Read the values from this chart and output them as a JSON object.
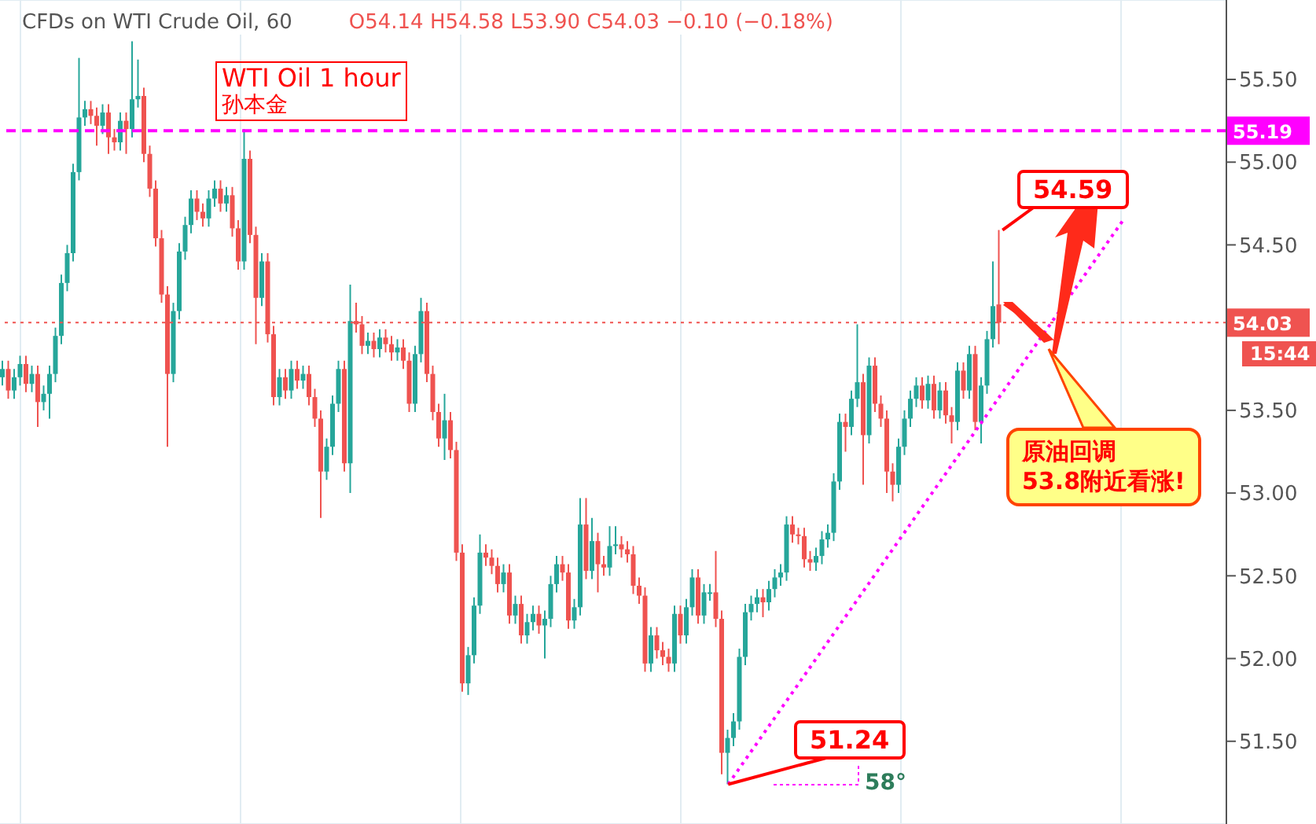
{
  "chart_data": {
    "type": "candlestick",
    "title": "CFDs on WTI Crude Oil, 60",
    "subtitle": "O54.14 H54.58 L53.90 C54.03 −0.10 (−0.18%)",
    "categories": [
      null,
      null,
      null,
      null,
      null,
      null,
      null,
      null,
      null,
      null,
      null,
      null,
      null,
      null,
      null,
      null,
      null,
      null,
      null,
      null,
      null,
      null,
      null,
      null,
      null,
      null,
      null,
      null,
      null,
      null,
      null,
      null,
      null,
      null,
      null,
      null,
      null,
      null,
      null,
      null,
      null,
      null,
      null,
      null,
      null,
      null,
      null,
      null,
      null,
      null,
      null,
      null,
      null,
      null,
      null,
      null,
      null,
      null,
      null,
      null,
      null,
      null,
      null,
      null,
      null,
      null,
      null,
      null,
      null,
      null,
      null,
      null,
      null,
      null,
      null,
      null,
      null,
      null,
      null,
      null,
      null,
      null,
      null,
      null,
      null,
      null,
      null,
      null,
      null,
      null,
      null,
      null,
      null,
      null,
      null,
      null,
      null,
      null,
      null,
      null,
      null,
      null,
      null,
      null,
      null,
      null,
      null,
      null,
      null,
      null,
      null,
      null,
      null,
      null,
      null,
      null,
      null,
      null,
      null,
      null,
      null,
      null,
      null,
      null,
      null,
      null,
      null,
      null,
      null,
      null,
      null,
      null,
      null,
      null,
      null,
      null,
      null,
      null,
      null,
      null,
      null,
      null,
      null,
      null,
      null,
      null,
      null,
      null,
      null,
      null,
      null,
      null,
      null,
      null,
      null,
      null,
      null,
      null,
      null,
      null,
      null,
      null,
      null,
      null,
      null,
      null,
      null,
      null,
      null,
      null,
      null,
      null,
      null,
      null,
      null,
      null,
      null,
      null,
      null,
      null,
      null,
      null,
      null,
      null,
      null,
      null,
      null,
      null,
      null,
      null,
      null,
      null,
      null,
      null,
      null,
      null,
      null,
      null,
      null,
      null,
      null,
      null,
      null,
      null,
      null,
      null,
      null,
      null
    ],
    "ohlc": [
      [
        53.7,
        53.8,
        53.65,
        53.75
      ],
      [
        53.75,
        53.8,
        53.57,
        53.62
      ],
      [
        53.62,
        53.75,
        53.57,
        53.7
      ],
      [
        53.7,
        53.83,
        53.65,
        53.78
      ],
      [
        53.78,
        53.83,
        53.61,
        53.66
      ],
      [
        53.66,
        53.77,
        53.61,
        53.72
      ],
      [
        53.72,
        53.77,
        53.4,
        53.55
      ],
      [
        53.55,
        53.65,
        53.5,
        53.6
      ],
      [
        53.6,
        53.77,
        53.45,
        53.72
      ],
      [
        53.72,
        54.0,
        53.67,
        53.95
      ],
      [
        53.95,
        54.32,
        53.9,
        54.27
      ],
      [
        54.27,
        54.5,
        54.22,
        54.45
      ],
      [
        54.45,
        54.99,
        54.4,
        54.94
      ],
      [
        54.94,
        55.63,
        54.89,
        55.27
      ],
      [
        55.27,
        55.37,
        55.22,
        55.32
      ],
      [
        55.32,
        55.37,
        55.23,
        55.28
      ],
      [
        55.28,
        55.33,
        55.1,
        55.22
      ],
      [
        55.22,
        55.35,
        55.17,
        55.3
      ],
      [
        55.3,
        55.35,
        55.05,
        55.15
      ],
      [
        55.15,
        55.2,
        55.07,
        55.12
      ],
      [
        55.12,
        55.3,
        55.07,
        55.25
      ],
      [
        55.25,
        55.3,
        55.05,
        55.2
      ],
      [
        55.2,
        55.73,
        55.15,
        55.38
      ],
      [
        55.38,
        55.62,
        55.33,
        55.4
      ],
      [
        55.4,
        55.45,
        55.0,
        55.05
      ],
      [
        55.05,
        55.1,
        54.79,
        54.84
      ],
      [
        54.84,
        54.89,
        54.49,
        54.54
      ],
      [
        54.54,
        54.59,
        54.15,
        54.2
      ],
      [
        54.2,
        54.25,
        53.28,
        53.72
      ],
      [
        53.72,
        54.15,
        53.67,
        54.1
      ],
      [
        54.1,
        54.51,
        54.05,
        54.46
      ],
      [
        54.46,
        54.67,
        54.41,
        54.62
      ],
      [
        54.62,
        54.83,
        54.57,
        54.78
      ],
      [
        54.78,
        54.83,
        54.65,
        54.7
      ],
      [
        54.7,
        54.75,
        54.61,
        54.66
      ],
      [
        54.66,
        54.83,
        54.61,
        54.78
      ],
      [
        54.78,
        54.89,
        54.73,
        54.84
      ],
      [
        54.84,
        54.89,
        54.7,
        54.75
      ],
      [
        54.75,
        54.85,
        54.7,
        54.8
      ],
      [
        54.8,
        54.85,
        54.55,
        54.6
      ],
      [
        54.6,
        54.65,
        54.35,
        54.4
      ],
      [
        54.4,
        55.2,
        54.35,
        55.02
      ],
      [
        55.02,
        55.07,
        54.51,
        54.56
      ],
      [
        54.56,
        54.61,
        53.9,
        54.18
      ],
      [
        54.18,
        54.45,
        54.13,
        54.4
      ],
      [
        54.4,
        54.45,
        53.91,
        53.96
      ],
      [
        53.96,
        54.01,
        53.53,
        53.58
      ],
      [
        53.58,
        53.75,
        53.53,
        53.7
      ],
      [
        53.7,
        53.75,
        53.57,
        53.62
      ],
      [
        53.62,
        53.8,
        53.57,
        53.75
      ],
      [
        53.75,
        53.8,
        53.63,
        53.68
      ],
      [
        53.68,
        53.77,
        53.63,
        53.72
      ],
      [
        53.72,
        53.77,
        53.53,
        53.58
      ],
      [
        53.58,
        53.63,
        53.4,
        53.45
      ],
      [
        53.45,
        53.5,
        52.85,
        53.13
      ],
      [
        53.13,
        53.33,
        53.08,
        53.28
      ],
      [
        53.28,
        53.59,
        53.23,
        53.54
      ],
      [
        53.54,
        53.8,
        53.49,
        53.75
      ],
      [
        53.75,
        53.8,
        53.13,
        53.18
      ],
      [
        53.18,
        54.26,
        53.0,
        54.04
      ],
      [
        54.04,
        54.15,
        53.97,
        54.02
      ],
      [
        54.02,
        54.07,
        53.84,
        53.89
      ],
      [
        53.89,
        53.97,
        53.84,
        53.92
      ],
      [
        53.92,
        53.97,
        53.82,
        53.87
      ],
      [
        53.87,
        53.99,
        53.82,
        53.94
      ],
      [
        53.94,
        53.99,
        53.85,
        53.9
      ],
      [
        53.9,
        53.95,
        53.8,
        53.85
      ],
      [
        53.85,
        53.93,
        53.8,
        53.88
      ],
      [
        53.88,
        53.93,
        53.75,
        53.8
      ],
      [
        53.8,
        53.85,
        53.49,
        53.54
      ],
      [
        53.54,
        53.89,
        53.49,
        53.84
      ],
      [
        53.84,
        54.18,
        53.79,
        54.1
      ],
      [
        54.1,
        54.15,
        53.67,
        53.72
      ],
      [
        53.72,
        53.77,
        53.44,
        53.49
      ],
      [
        53.49,
        53.54,
        53.28,
        53.33
      ],
      [
        53.33,
        53.6,
        53.2,
        53.44
      ],
      [
        53.44,
        53.49,
        53.21,
        53.26
      ],
      [
        53.26,
        53.31,
        52.59,
        52.64
      ],
      [
        52.64,
        52.69,
        51.8,
        51.85
      ],
      [
        51.85,
        52.07,
        51.78,
        52.02
      ],
      [
        52.02,
        52.37,
        51.97,
        52.32
      ],
      [
        52.32,
        52.75,
        52.27,
        52.64
      ],
      [
        52.64,
        52.69,
        52.56,
        52.61
      ],
      [
        52.61,
        52.66,
        52.51,
        52.56
      ],
      [
        52.56,
        52.61,
        52.4,
        52.45
      ],
      [
        52.45,
        52.57,
        52.4,
        52.52
      ],
      [
        52.52,
        52.57,
        52.21,
        52.26
      ],
      [
        52.26,
        52.38,
        52.21,
        52.33
      ],
      [
        52.33,
        52.38,
        52.09,
        52.14
      ],
      [
        52.14,
        52.27,
        52.09,
        52.22
      ],
      [
        52.22,
        52.32,
        52.17,
        52.27
      ],
      [
        52.27,
        52.32,
        52.15,
        52.2
      ],
      [
        52.2,
        52.29,
        52.0,
        52.24
      ],
      [
        52.24,
        52.5,
        52.19,
        52.45
      ],
      [
        52.45,
        52.62,
        52.4,
        52.57
      ],
      [
        52.57,
        52.62,
        52.47,
        52.52
      ],
      [
        52.52,
        52.57,
        52.18,
        52.23
      ],
      [
        52.23,
        52.36,
        52.18,
        52.31
      ],
      [
        52.31,
        52.97,
        52.26,
        52.81
      ],
      [
        52.81,
        52.97,
        52.48,
        52.53
      ],
      [
        52.53,
        52.85,
        52.48,
        52.71
      ],
      [
        52.71,
        52.76,
        52.4,
        52.57
      ],
      [
        52.57,
        52.62,
        52.5,
        52.55
      ],
      [
        52.55,
        52.8,
        52.5,
        52.68
      ],
      [
        52.68,
        52.8,
        52.63,
        52.69
      ],
      [
        52.69,
        52.74,
        52.61,
        52.66
      ],
      [
        52.66,
        52.71,
        52.58,
        52.63
      ],
      [
        52.63,
        52.68,
        52.39,
        52.44
      ],
      [
        52.44,
        52.49,
        52.33,
        52.38
      ],
      [
        52.38,
        52.43,
        51.92,
        51.97
      ],
      [
        51.97,
        52.19,
        51.92,
        52.14
      ],
      [
        52.14,
        52.19,
        52.0,
        52.05
      ],
      [
        52.05,
        52.1,
        51.96,
        52.01
      ],
      [
        52.01,
        52.06,
        51.92,
        51.97
      ],
      [
        51.97,
        52.32,
        51.92,
        52.27
      ],
      [
        52.27,
        52.32,
        52.09,
        52.14
      ],
      [
        52.14,
        52.36,
        52.09,
        52.31
      ],
      [
        52.31,
        52.54,
        52.26,
        52.49
      ],
      [
        52.49,
        52.54,
        52.21,
        52.26
      ],
      [
        52.26,
        52.45,
        52.21,
        52.4
      ],
      [
        52.4,
        52.45,
        52.35,
        52.4
      ],
      [
        52.4,
        52.65,
        52.19,
        52.24
      ],
      [
        52.24,
        52.29,
        51.3,
        51.43
      ],
      [
        51.43,
        51.57,
        51.24,
        51.52
      ],
      [
        51.52,
        51.67,
        51.47,
        51.62
      ],
      [
        51.62,
        52.06,
        51.57,
        52.01
      ],
      [
        52.01,
        52.33,
        51.96,
        52.28
      ],
      [
        52.28,
        52.38,
        52.23,
        52.33
      ],
      [
        52.33,
        52.42,
        52.28,
        52.37
      ],
      [
        52.37,
        52.42,
        52.25,
        52.34
      ],
      [
        52.34,
        52.47,
        52.29,
        52.42
      ],
      [
        52.42,
        52.54,
        52.37,
        52.49
      ],
      [
        52.49,
        52.57,
        52.44,
        52.52
      ],
      [
        52.52,
        52.86,
        52.47,
        52.81
      ],
      [
        52.81,
        52.86,
        52.7,
        52.75
      ],
      [
        52.75,
        52.79,
        52.69,
        52.74
      ],
      [
        52.74,
        52.79,
        52.55,
        52.6
      ],
      [
        52.6,
        52.65,
        52.53,
        52.58
      ],
      [
        52.58,
        52.67,
        52.53,
        52.62
      ],
      [
        52.62,
        52.77,
        52.57,
        52.72
      ],
      [
        52.72,
        52.81,
        52.67,
        52.76
      ],
      [
        52.76,
        53.12,
        52.71,
        53.07
      ],
      [
        53.07,
        53.48,
        53.02,
        53.43
      ],
      [
        53.43,
        53.48,
        53.25,
        53.4
      ],
      [
        53.4,
        53.62,
        53.35,
        53.57
      ],
      [
        53.57,
        54.02,
        53.52,
        53.67
      ],
      [
        53.67,
        53.72,
        53.05,
        53.35
      ],
      [
        53.35,
        53.82,
        53.3,
        53.77
      ],
      [
        53.77,
        53.82,
        53.49,
        53.54
      ],
      [
        53.54,
        53.59,
        53.4,
        53.45
      ],
      [
        53.45,
        53.5,
        53.0,
        53.13
      ],
      [
        53.13,
        53.18,
        52.95,
        53.05
      ],
      [
        53.05,
        53.33,
        53.0,
        53.28
      ],
      [
        53.28,
        53.5,
        53.23,
        53.45
      ],
      [
        53.45,
        53.62,
        53.4,
        53.57
      ],
      [
        53.57,
        53.7,
        53.52,
        53.65
      ],
      [
        53.65,
        53.7,
        53.51,
        53.56
      ],
      [
        53.56,
        53.71,
        53.51,
        53.66
      ],
      [
        53.66,
        53.71,
        53.45,
        53.5
      ],
      [
        53.5,
        53.67,
        53.45,
        53.62
      ],
      [
        53.62,
        53.67,
        53.42,
        53.47
      ],
      [
        53.47,
        53.52,
        53.3,
        53.43
      ],
      [
        53.43,
        53.79,
        53.38,
        53.74
      ],
      [
        53.74,
        53.79,
        53.57,
        53.62
      ],
      [
        53.62,
        53.89,
        53.57,
        53.84
      ],
      [
        53.84,
        53.89,
        53.38,
        53.43
      ],
      [
        53.43,
        53.7,
        53.3,
        53.65
      ],
      [
        53.65,
        53.98,
        53.6,
        53.93
      ],
      [
        53.93,
        54.4,
        53.88,
        54.13
      ],
      [
        54.14,
        54.59,
        53.9,
        54.03
      ],
      null,
      null,
      null,
      null,
      null,
      null,
      null,
      null,
      null,
      null,
      null,
      null,
      null,
      null,
      null,
      null,
      null,
      null,
      null,
      null,
      null,
      null,
      null,
      null,
      null,
      null,
      null,
      null,
      null,
      null,
      null,
      null,
      null,
      null,
      null,
      null,
      null,
      null
    ],
    "colors": [
      "#26a69a",
      "#ef5350",
      "#26a69a",
      "#26a69a",
      "#ef5350",
      "#26a69a",
      "#ef5350",
      "#26a69a",
      "#26a69a",
      "#26a69a",
      "#26a69a",
      "#26a69a",
      "#26a69a",
      "#26a69a",
      "#26a69a",
      "#ef5350",
      "#ef5350",
      "#26a69a",
      "#ef5350",
      "#ef5350",
      "#26a69a",
      "#ef5350",
      "#26a69a",
      "#26a69a",
      "#ef5350",
      "#ef5350",
      "#ef5350",
      "#ef5350",
      "#ef5350",
      "#26a69a",
      "#26a69a",
      "#26a69a",
      "#26a69a",
      "#ef5350",
      "#ef5350",
      "#26a69a",
      "#26a69a",
      "#ef5350",
      "#26a69a",
      "#ef5350",
      "#ef5350",
      "#26a69a",
      "#ef5350",
      "#ef5350",
      "#26a69a",
      "#ef5350",
      "#ef5350",
      "#26a69a",
      "#ef5350",
      "#26a69a",
      "#ef5350",
      "#26a69a",
      "#ef5350",
      "#ef5350",
      "#ef5350",
      "#26a69a",
      "#26a69a",
      "#26a69a",
      "#ef5350",
      "#26a69a",
      "#ef5350",
      "#ef5350",
      "#26a69a",
      "#ef5350",
      "#26a69a",
      "#ef5350",
      "#ef5350",
      "#26a69a",
      "#ef5350",
      "#ef5350",
      "#26a69a",
      "#26a69a",
      "#ef5350",
      "#ef5350",
      "#ef5350",
      "#26a69a",
      "#ef5350",
      "#ef5350",
      "#ef5350",
      "#26a69a",
      "#26a69a",
      "#26a69a",
      "#ef5350",
      "#ef5350",
      "#ef5350",
      "#26a69a",
      "#ef5350",
      "#26a69a",
      "#ef5350",
      "#26a69a",
      "#26a69a",
      "#ef5350",
      "#26a69a",
      "#26a69a",
      "#26a69a",
      "#ef5350",
      "#ef5350",
      "#26a69a",
      "#26a69a",
      "#ef5350",
      "#26a69a",
      "#ef5350",
      "#ef5350",
      "#26a69a",
      "#26a69a",
      "#ef5350",
      "#ef5350",
      "#ef5350",
      "#ef5350",
      "#ef5350",
      "#26a69a",
      "#ef5350",
      "#ef5350",
      "#ef5350",
      "#26a69a",
      "#ef5350",
      "#26a69a",
      "#26a69a",
      "#ef5350",
      "#26a69a",
      "#26a69a",
      "#ef5350",
      "#ef5350",
      "#26a69a",
      "#26a69a",
      "#26a69a",
      "#26a69a",
      "#26a69a",
      "#26a69a",
      "#ef5350",
      "#26a69a",
      "#26a69a",
      "#26a69a",
      "#26a69a",
      "#ef5350",
      "#ef5350",
      "#ef5350",
      "#ef5350",
      "#26a69a",
      "#26a69a",
      "#26a69a",
      "#26a69a",
      "#26a69a",
      "#ef5350",
      "#26a69a",
      "#26a69a",
      "#ef5350",
      "#26a69a",
      "#ef5350",
      "#ef5350",
      "#ef5350",
      "#ef5350",
      "#26a69a",
      "#26a69a",
      "#26a69a",
      "#26a69a",
      "#ef5350",
      "#26a69a",
      "#ef5350",
      "#26a69a",
      "#ef5350",
      "#ef5350",
      "#26a69a",
      "#ef5350",
      "#26a69a",
      "#ef5350",
      "#26a69a",
      "#26a69a",
      "#26a69a",
      "#ef5350",
      null,
      null,
      null,
      null,
      null,
      null,
      null,
      null,
      null,
      null,
      null,
      null,
      null,
      null,
      null,
      null,
      null,
      null,
      null,
      null,
      null,
      null,
      null,
      null,
      null,
      null,
      null,
      null,
      null,
      null,
      null,
      null,
      null,
      null,
      null,
      null,
      null,
      null
    ],
    "series": [
      {
        "type": "line",
        "color": "#ff00ff",
        "line_style": "dotted",
        "values": [
          null,
          null,
          null,
          null,
          null,
          null,
          null,
          null,
          null,
          null,
          null,
          null,
          null,
          null,
          null,
          null,
          null,
          null,
          null,
          null,
          null,
          null,
          null,
          null,
          null,
          null,
          null,
          null,
          null,
          null,
          null,
          null,
          null,
          null,
          null,
          null,
          null,
          null,
          null,
          null,
          null,
          null,
          null,
          null,
          null,
          null,
          null,
          null,
          null,
          null,
          null,
          null,
          null,
          null,
          null,
          null,
          null,
          null,
          null,
          null,
          null,
          null,
          null,
          null,
          null,
          null,
          null,
          null,
          null,
          null,
          null,
          null,
          null,
          null,
          null,
          null,
          null,
          null,
          null,
          null,
          null,
          null,
          null,
          null,
          null,
          null,
          null,
          null,
          null,
          null,
          null,
          null,
          null,
          null,
          null,
          null,
          null,
          null,
          null,
          null,
          null,
          null,
          null,
          null,
          null,
          null,
          null,
          null,
          null,
          null,
          null,
          null,
          null,
          null,
          null,
          null,
          null,
          null,
          null,
          null,
          null,
          null,
          null,
          51.24,
          null,
          null,
          null,
          null,
          null,
          null,
          null,
          null,
          null,
          null,
          null,
          null,
          null,
          null,
          null,
          null,
          null,
          null,
          null,
          null,
          null,
          null,
          null,
          null,
          null,
          null,
          null,
          null,
          null,
          null,
          null,
          null,
          null,
          null,
          null,
          null,
          null,
          null,
          null,
          null,
          null,
          null,
          null,
          null,
          null,
          null,
          null,
          null,
          null,
          null,
          null,
          null,
          null,
          null,
          null,
          null,
          null,
          null,
          null,
          null,
          null,
          null,
          null,
          null,
          null,
          null,
          54.65,
          null,
          null,
          null,
          null,
          null,
          null,
          null,
          null,
          null,
          null,
          null,
          null,
          null,
          null,
          null,
          null,
          null
        ]
      }
    ],
    "ylim": [
      51.0,
      55.98
    ],
    "yticks": [
      {
        "value": 51.5,
        "label": "51.50"
      },
      {
        "value": 52,
        "label": "52.00"
      },
      {
        "value": 52.5,
        "label": "52.50"
      },
      {
        "value": 53,
        "label": "53.00"
      },
      {
        "value": 53.5,
        "label": "53.50"
      },
      {
        "value": 54.5,
        "label": "54.50"
      },
      {
        "value": 55,
        "label": "55.00"
      },
      {
        "value": 55.5,
        "label": "55.50"
      }
    ],
    "ref_lines": [
      {
        "axis": "y",
        "value": 55.19,
        "label": "55.19",
        "color": "#ff00ff",
        "line_style": "dashed"
      },
      {
        "axis": "y",
        "value": 54.03,
        "label": "54.03",
        "color": "#ef5350",
        "line_style": "dotted"
      }
    ],
    "annotations": [
      "WTI Oil 1 hour",
      "孙本金",
      "54.59",
      "51.24",
      "58°",
      "原油回调\n53.8附近看涨!",
      "15:44"
    ],
    "grid": true,
    "tick_labels": "y"
  }
}
